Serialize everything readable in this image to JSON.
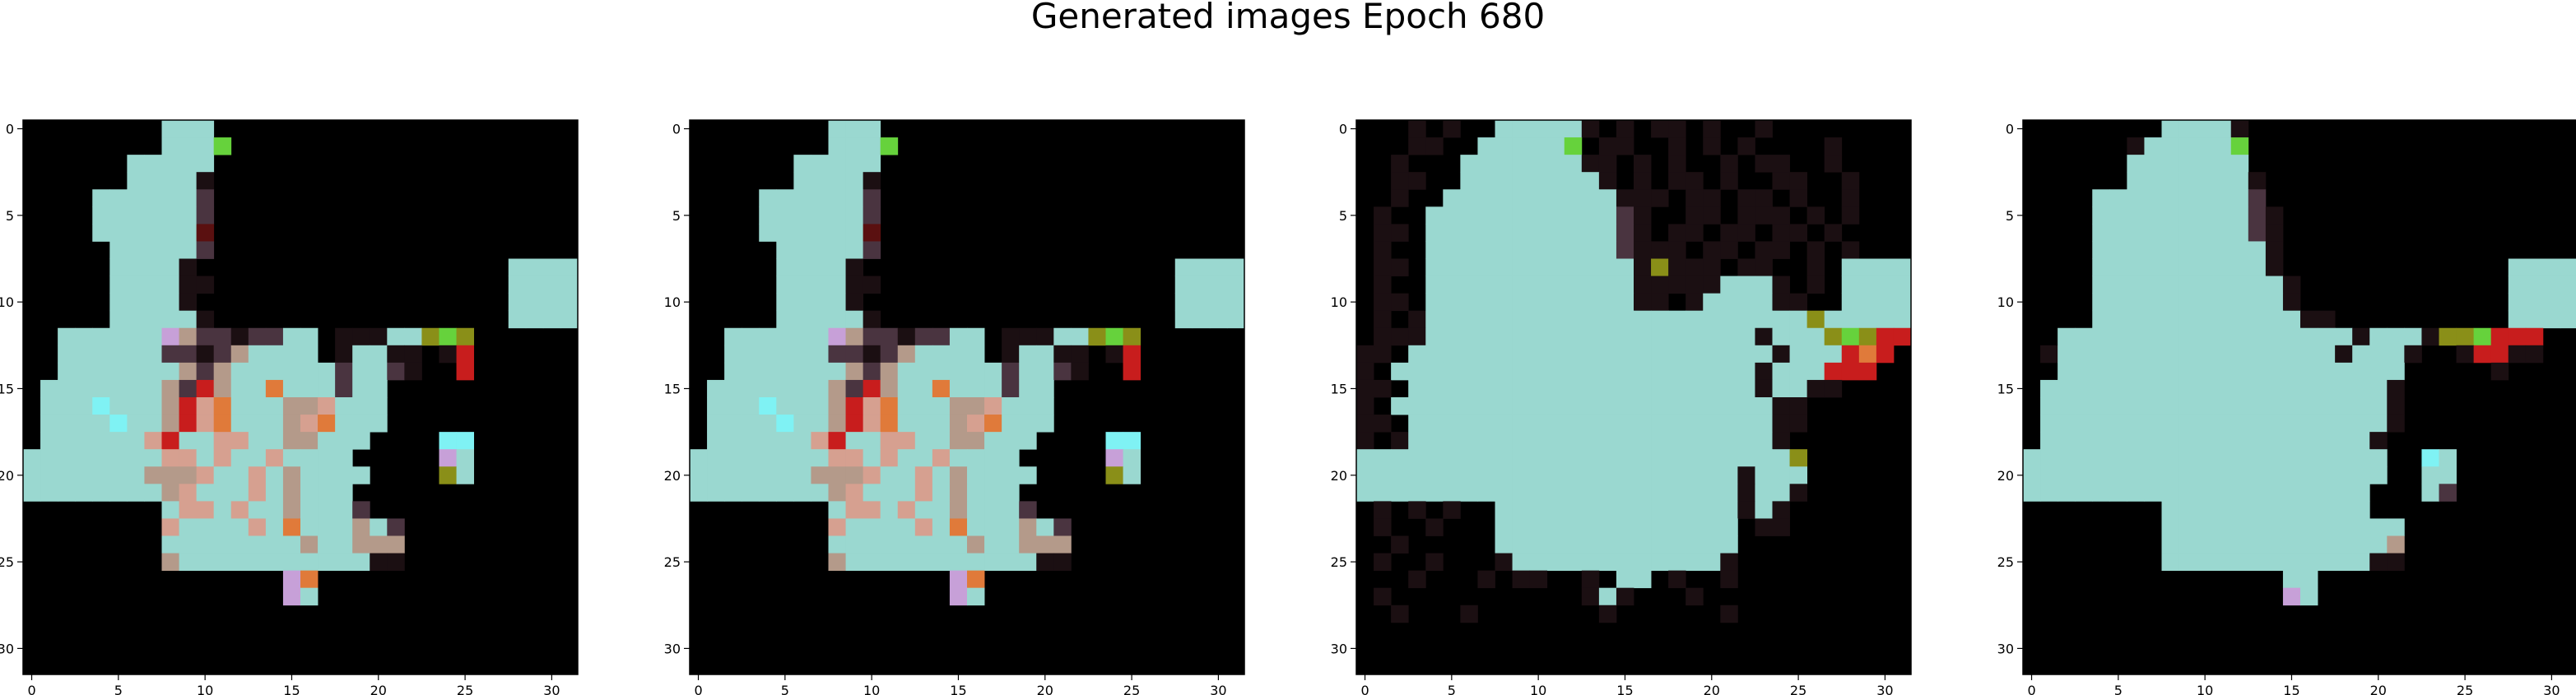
{
  "chart_data": {
    "title": "Generated images Epoch 680",
    "type": "heatmap",
    "grid": false,
    "panels": [
      {
        "name": "generated-image-1",
        "xlim": [
          -0.5,
          31.5
        ],
        "ylim": [
          31.5,
          -0.5
        ],
        "xticks": [
          0,
          5,
          10,
          15,
          20,
          25,
          30
        ],
        "yticks": [
          0,
          5,
          10,
          15,
          20,
          25,
          30
        ],
        "xtick_labels": [
          "0",
          "5",
          "10",
          "15",
          "20",
          "25",
          "30"
        ],
        "ytick_labels": [
          "0",
          "5",
          "10",
          "15",
          "20",
          "25",
          "30"
        ],
        "background": "#000000",
        "grid_rows": [
          "........TTT.....................",
          "........TTTG....................",
          "......TTTTT.....................",
          "......TTTTd.....................",
          "....TTTTTTm.....................",
          "....TTTTTTm.....................",
          "....TTTTTTr.....................",
          ".....TTTTTm.....................",
          ".....TTTTd..................TTTT",
          ".....TTTTdd.................TTTT",
          ".....TTTTd..................TTTT",
          ".....TTTTTd.................TTTT",
          "..TTTTTTPMmmdmmTT.dddTTyGy.....",
          "..TTTTTTmmdmMTTTT.dTTdd.dR.....",
          "..TTTTTTTMmMTTTTTTmTTmd..R.....",
          ".TTTTTTTMmRMTTOTTTmTT..........",
          ".TTTCTTTMRKOTTTMMKTTT..........",
          ".TTTTCTTMRKOTTTMKOTTT..........",
          ".TTTTTTKRTTKKTTMMTTT....CC.....",
          "TTTTTTTTKKTKTTKTTTT.....PT.....",
          "TTTTTTTMMMKTTKTMTTTT....yT.....",
          "TTTTTTTTMKTTTKTMTTT.............",
          "........TKKTKTTMTTTm............",
          "........KTTTTKTOTTTMTm..........",
          "........TTTTTTTTMTTMMM..........",
          "........MTTTTTTTTTTTdd..........",
          "...............PO...............",
          "...............PT..............."
        ]
      },
      {
        "name": "generated-image-2",
        "xlim": [
          -0.5,
          31.5
        ],
        "ylim": [
          31.5,
          -0.5
        ],
        "xticks": [
          0,
          5,
          10,
          15,
          20,
          25,
          30
        ],
        "yticks": [
          0,
          5,
          10,
          15,
          20,
          25,
          30
        ],
        "xtick_labels": [
          "0",
          "5",
          "10",
          "15",
          "20",
          "25",
          "30"
        ],
        "ytick_labels": [
          "0",
          "5",
          "10",
          "15",
          "20",
          "25",
          "30"
        ],
        "background": "#000000",
        "grid_rows": [
          "........TTT.....................",
          "........TTTG....................",
          "......TTTTT.....................",
          "......TTTTd.....................",
          "....TTTTTTm.....................",
          "....TTTTTTm.....................",
          "....TTTTTTr.....................",
          ".....TTTTTm.....................",
          ".....TTTTd..................TTTT",
          ".....TTTTdd.................TTTT",
          ".....TTTTd..................TTTT",
          ".....TTTTTd.................TTTT",
          "..TTTTTTPMmmdmmTT.dddTTyGy.....",
          "..TTTTTTmmdmMTTTT.dTTdd.dR.....",
          "..TTTTTTTMmMTTTTTTmTTmd..R.....",
          ".TTTTTTTMmRMTTOTTTmTT..........",
          ".TTTCTTTMRKOTTTMMKTTT..........",
          ".TTTTCTTMRKOTTTMKOTTT..........",
          ".TTTTTTKRTTKKTTMMTTT....CC.....",
          "TTTTTTTTKKTKTTKTTTT.....PT.....",
          "TTTTTTTMMMKTTKTMTTTT....yT.....",
          "TTTTTTTTMKTTTKTMTTT.............",
          "........TKKTKTTMTTTm............",
          "........KTTTTKTOTTTMTm..........",
          "........TTTTTTTTMTTMMM..........",
          "........MTTTTTTTTTTTdd..........",
          "...............PO...............",
          "...............PT..............."
        ]
      },
      {
        "name": "generated-image-3",
        "xlim": [
          -0.5,
          31.5
        ],
        "ylim": [
          31.5,
          -0.5
        ],
        "xticks": [
          0,
          5,
          10,
          15,
          20,
          25,
          30
        ],
        "yticks": [
          0,
          5,
          10,
          15,
          20,
          25,
          30
        ],
        "xtick_labels": [
          "0",
          "5",
          "10",
          "15",
          "20",
          "25",
          "30"
        ],
        "ytick_labels": [
          "0",
          "5",
          "10",
          "15",
          "20",
          "25",
          "30"
        ],
        "background": "#000000",
        "grid_rows": [
          "...d.d..TTTTTd.d.dd.d..d........",
          "...dd..TTTTTG.dd..d.d.d....d....",
          "..d...TTTTTTTdd.d.d..d.dd..d....",
          "..dd..TTTTTTTTd.d.dd.d..dd..d...",
          "..d..TTTTTTTTTTddd.dd.dd.d..d...",
          ".d..TTTTTTTTTTTmd..dd.ddd.d.d...",
          ".dd.TTTTTTTTTTTmd.dd.dd.dd.d....",
          ".d..TTTTTTTTTTTmddd.dd.dd.d.d...",
          ".dd.TTTTTTTTTTTTdyddd.dd..d.TTTT",
          ".d..TTTTTTTTTTTTdddddTTTd.d.TTTT",
          ".dd.TTTTTTTTTTTTdd.dTTTTdd..TTTT",
          ".d.dTTTTTTTTTTTTTTTTTTTTTTyTTTTT",
          ".dddTTTTTTTTTTTTTTTTTTTdTTTyGyRR",
          "dd.TTTTTTTTTTTTTTTTTTTTTdTTTROR.",
          "d.TTTTTTTTTTTTTTTTTTTTTdTTTRRR..",
          "dd.TTTTTTTTTTTTTTTTTTTTdTTdd....",
          "d.TTTTTTTTTTTTTTTTTTTTTTdd......",
          "dd.TTTTTTTTTTTTTTTTTTTTTdd......",
          "d.dTTTTTTTTTTTTTTTTTTTTTd.......",
          "TTTTTTTTTTTTTTTTTTTTTTTTTy......",
          "TTTTTTTTTTTTTTTTTTTTTTdTTT......",
          "TTTTTTTTTTTTTTTTTTTTTTdTTd......",
          ".d.d.d..TTTTTTTTTTTTTTdTd.......",
          ".d..d...TTTTTTTTTTTTTT.dd.......",
          "..d.....TTTTTTTTTTTTTT..........",
          ".d..d...dTTTTTTTTTTTTd..........",
          "...d...d.dd..d.TT.d..d..........",
          ".d...........dTd...d............",
          "..d...d.......d......d.........."
        ]
      },
      {
        "name": "generated-image-4",
        "xlim": [
          -0.5,
          31.5
        ],
        "ylim": [
          31.5,
          -0.5
        ],
        "xticks": [
          0,
          5,
          10,
          15,
          20,
          25,
          30
        ],
        "yticks": [
          0,
          5,
          10,
          15,
          20,
          25,
          30
        ],
        "xtick_labels": [
          "0",
          "5",
          "10",
          "15",
          "20",
          "25",
          "30"
        ],
        "ytick_labels": [
          "0",
          "5",
          "10",
          "15",
          "20",
          "25",
          "30"
        ],
        "background": "#000000",
        "grid_rows": [
          "........TTTTd...................",
          "......dTTTTTG...................",
          "......TTTTTTT...................",
          "......TTTTTTTd..................",
          "....TTTTTTTTTm..................",
          "....TTTTTTTTTmd.................",
          "....TTTTTTTTTmd.................",
          "....TTTTTTTTTTd.................",
          "....TTTTTTTTTTd.............TTTT",
          "....TTTTTTTTTTTd............TTTT",
          "....TTTTTTTTTTTd............TTTT",
          "....TTTTTTTTTTTTdd..........TTTT",
          "..TTTTTTTTTTTTTTTTTdTTTdyyGRRR..",
          ".dTTTTTTTTTTTTTTTTdTTTd..dRRdd..",
          "..TTTTTTTTTTTTTTTTTTTT.....d....",
          ".TTTTTTTTTTTTTTTTTTTTd..........",
          ".TTTTTTTTTTTTTTTTTTTTd..........",
          ".TTTTTTTTTTTTTTTTTTTTd..........",
          ".TTTTTTTTTTTTTTTTTTTd...........",
          "TTTTTTTTTTTTTTTTTTTTT..CT.......",
          "TTTTTTTTTTTTTTTTTTTTT..TT.......",
          "TTTTTTTTTTTTTTTTTTTT...Tm.......",
          "........TTTTTTTTTTTT............",
          "........TTTTTTTTTTTTTT..........",
          "........TTTTTTTTTTTTTM..........",
          "........TTTTTTTTTTTTdd..........",
          "...............TT...............",
          "...............PT..............."
        ]
      }
    ],
    "palette": {
      ".": "#000000",
      "d": "#1b0f12",
      "r": "#5a1010",
      "R": "#c81d1d",
      "O": "#e07a3a",
      "y": "#8a8f18",
      "G": "#66d23c",
      "T": "#9ad8d0",
      "C": "#7ff2f4",
      "P": "#c7a0d8",
      "M": "#b49a8a",
      "m": "#4a3440",
      "K": "#d6a090"
    }
  }
}
